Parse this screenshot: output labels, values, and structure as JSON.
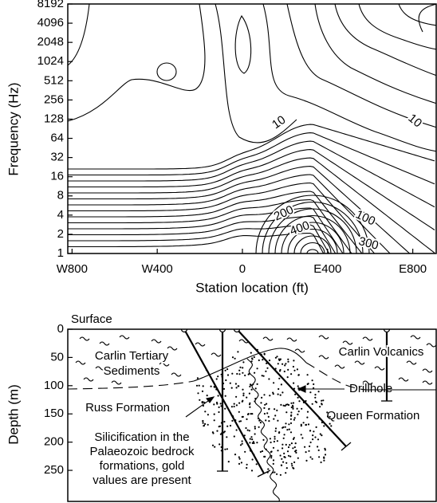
{
  "chart_data": [
    {
      "type": "contour",
      "xlabel": "Station location (ft)",
      "ylabel": "Frequency (Hz)",
      "xlim": [
        -820,
        910
      ],
      "xticks": [
        {
          "value": -800,
          "label": "W800"
        },
        {
          "value": -400,
          "label": "W400"
        },
        0,
        {
          "value": 400,
          "label": "E400"
        },
        {
          "value": 800,
          "label": "E800"
        }
      ],
      "ylim": [
        1,
        8192
      ],
      "yscale": "log",
      "yticks": [
        1,
        2,
        4,
        8,
        16,
        32,
        64,
        128,
        256,
        512,
        1024,
        2048,
        4096,
        8192
      ],
      "contour_labels": [
        10,
        10,
        100,
        200,
        400,
        300
      ]
    },
    {
      "type": "cross-section",
      "ylabel": "Depth (m)",
      "ylim": [
        0,
        305
      ],
      "yticks": [
        0,
        50,
        100,
        150,
        200,
        250
      ],
      "annotations": {
        "surface": "Surface",
        "carlin_tertiary": [
          "Carlin Tertiary",
          "Sediments"
        ],
        "carlin_volcanics": "Carlin Volcanics",
        "russ": "Russ Formation",
        "queen": "Queen Formation",
        "silicification": [
          "Silicification in the",
          "Palaeozoic bedrock",
          "formations, gold",
          "values are present"
        ],
        "drillhole": "Drillhole"
      }
    }
  ]
}
